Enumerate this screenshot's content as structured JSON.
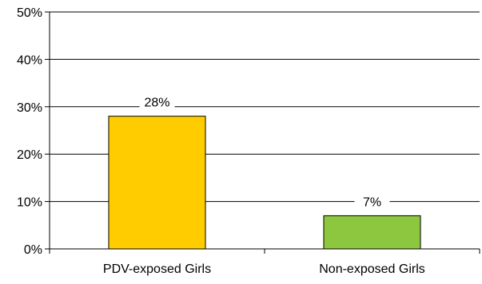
{
  "chart_data": {
    "type": "bar",
    "title": "",
    "xlabel": "",
    "ylabel": "",
    "categories": [
      "PDV-exposed Girls",
      "Non-exposed Girls"
    ],
    "values": [
      28,
      7
    ],
    "value_labels": [
      "28%",
      "7%"
    ],
    "ylim": [
      0,
      50
    ],
    "yticks": [
      0,
      10,
      20,
      30,
      40,
      50
    ],
    "ytick_labels": [
      "0%",
      "10%",
      "20%",
      "30%",
      "40%",
      "50%"
    ],
    "grid": true,
    "legend": "none",
    "bar_colors": [
      "#FFCC00",
      "#8DC63F"
    ]
  }
}
